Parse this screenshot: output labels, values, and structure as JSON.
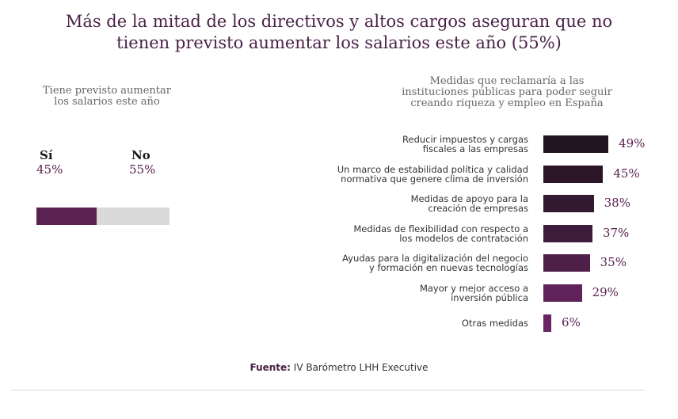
{
  "title": {
    "line1": "Más de la mitad de los directivos y altos cargos aseguran que no",
    "line2": "tienen previsto aumentar los salarios este año (55%)"
  },
  "left_panel": {
    "heading_line1": "Tiene previsto aumentar",
    "heading_line2": "los salarios este año",
    "yes_label": "Sí",
    "yes_value": "45%",
    "no_label": "No",
    "no_value": "55%"
  },
  "right_panel": {
    "heading_line1": "Medidas que reclamaría a las",
    "heading_line2": "instituciones públicas para poder seguir",
    "heading_line3": "creando riqueza y empleo en España"
  },
  "source": {
    "label": "Fuente:",
    "text": " IV Barómetro LHH Executive"
  },
  "colors": {
    "title": "#4a2247",
    "yes_fill": "#5a2250",
    "no_fill": "#d9d9d9",
    "bar_dark": "#231520",
    "bar_light": "#6a2465"
  },
  "chart_data": [
    {
      "type": "bar",
      "orientation": "horizontal-stacked",
      "title": "Tiene previsto aumentar los salarios este año",
      "categories": [
        "Sí",
        "No"
      ],
      "values": [
        45,
        55
      ],
      "value_labels": [
        "45%",
        "55%"
      ],
      "colors": [
        "#5a2250",
        "#d9d9d9"
      ]
    },
    {
      "type": "bar",
      "orientation": "horizontal",
      "title": "Medidas que reclamaría a las instituciones públicas para poder seguir creando riqueza y empleo en España",
      "categories": [
        [
          "Reducir impuestos y cargas",
          "fiscales a las empresas"
        ],
        [
          "Un marco de estabilidad política y calidad",
          "normativa que genere clima de inversión"
        ],
        [
          "Medidas de apoyo para la",
          "creación de empresas"
        ],
        [
          "Medidas de flexibilidad con respecto a",
          "los modelos de contratación"
        ],
        [
          "Ayudas para la digitalización del negocio",
          "y formación en nuevas tecnologías"
        ],
        [
          "Mayor y mejor acceso a",
          "inversión pública"
        ],
        [
          "Otras medidas"
        ]
      ],
      "values": [
        49,
        45,
        38,
        37,
        35,
        29,
        6
      ],
      "value_labels": [
        "49%",
        "45%",
        "38%",
        "37%",
        "35%",
        "29%",
        "6%"
      ],
      "colors": [
        "#231520",
        "#2b1628",
        "#341a31",
        "#3e1d3b",
        "#4e2049",
        "#5f2259",
        "#6a2465"
      ]
    }
  ]
}
